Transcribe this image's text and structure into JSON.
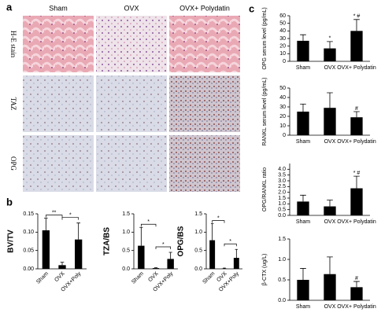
{
  "panel_labels": [
    "a",
    "b",
    "c"
  ],
  "histology": {
    "columns": [
      "Sham",
      "OVX",
      "OVX+ Polydatin"
    ],
    "rows": [
      "H-E stain",
      "TAZ",
      "OPG"
    ]
  },
  "chart_data": [
    {
      "type": "bar",
      "y_label": "BV/TV",
      "categories": [
        "Sham",
        "OVX",
        "OVX+Poly"
      ],
      "color": "#000000",
      "series": [
        {
          "values": [
            0.105,
            0.01,
            0.08
          ],
          "errors": [
            0.033,
            0.008,
            0.045
          ]
        }
      ],
      "ylim": [
        0,
        0.15
      ],
      "yticks": [
        {
          "value": 0,
          "label": "0.00"
        },
        {
          "value": 0.05,
          "label": "0.05"
        },
        {
          "value": 0.1,
          "label": "0.10"
        },
        {
          "value": 0.15,
          "label": "0.15"
        }
      ],
      "annotations": [
        {
          "text": "**",
          "between": [
            "Sham",
            "OVX"
          ]
        },
        {
          "text": "*",
          "between": [
            "OVX",
            "OVX+Poly"
          ]
        }
      ]
    },
    {
      "type": "bar",
      "y_label": "TZA/BS",
      "categories": [
        "Sham",
        "OVX",
        "OVX+Poly"
      ],
      "color": "#000000",
      "series": [
        {
          "values": [
            0.63,
            0.02,
            0.27
          ],
          "errors": [
            0.5,
            0.01,
            0.18
          ]
        }
      ],
      "ylim": [
        0,
        1.5
      ],
      "yticks": [
        {
          "value": 0,
          "label": "0.0"
        },
        {
          "value": 0.5,
          "label": "0.5"
        },
        {
          "value": 1,
          "label": "1.0"
        },
        {
          "value": 1.5,
          "label": "1.5"
        }
      ],
      "annotations": [
        {
          "text": "*",
          "between": [
            "Sham",
            "OVX"
          ]
        },
        {
          "text": "*",
          "between": [
            "OVX",
            "OVX+Poly"
          ]
        }
      ]
    },
    {
      "type": "bar",
      "y_label": "OPG/BS",
      "categories": [
        "Sham",
        "OVX",
        "OVX+Poly"
      ],
      "color": "#000000",
      "series": [
        {
          "values": [
            0.78,
            0.01,
            0.3
          ],
          "errors": [
            0.45,
            0.01,
            0.23
          ]
        }
      ],
      "ylim": [
        0,
        1.5
      ],
      "yticks": [
        {
          "value": 0,
          "label": "0.0"
        },
        {
          "value": 0.5,
          "label": "0.5"
        },
        {
          "value": 1,
          "label": "1.0"
        },
        {
          "value": 1.5,
          "label": "1.5"
        }
      ],
      "annotations": [
        {
          "text": "*",
          "between": [
            "Sham",
            "OVX"
          ]
        },
        {
          "text": "*",
          "between": [
            "OVX",
            "OVX+Poly"
          ]
        }
      ]
    },
    {
      "type": "bar",
      "y_label": "OPG serum level (pg/mL)",
      "categories": [
        "Sham",
        "OVX",
        "OVX+ Polydatin"
      ],
      "color": "#000000",
      "series": [
        {
          "values": [
            27,
            17,
            40
          ],
          "errors": [
            8,
            9,
            15
          ]
        }
      ],
      "ylim": [
        0,
        60
      ],
      "yticks": [
        0,
        10,
        20,
        30,
        40,
        50,
        60
      ],
      "annotations": [
        {
          "text": "*",
          "category": "OVX"
        },
        {
          "text": "* #",
          "category": "OVX+ Polydatin"
        }
      ]
    },
    {
      "type": "bar",
      "y_label": "RANKL serum level (pg/mL)",
      "categories": [
        "Sham",
        "OVX",
        "OVX+ Polydatin"
      ],
      "color": "#000000",
      "series": [
        {
          "values": [
            25,
            29,
            19
          ],
          "errors": [
            8,
            16,
            6
          ]
        }
      ],
      "ylim": [
        0,
        50
      ],
      "yticks": [
        0,
        10,
        20,
        30,
        40,
        50
      ],
      "annotations": [
        {
          "text": "#",
          "category": "OVX+ Polydatin"
        }
      ]
    },
    {
      "type": "bar",
      "y_label": "OPG/RANKL ratio",
      "categories": [
        "Sham",
        "OVX",
        "OVX+ Polydatin"
      ],
      "color": "#000000",
      "series": [
        {
          "values": [
            1.2,
            0.78,
            2.35
          ],
          "errors": [
            0.55,
            0.55,
            1.05
          ]
        }
      ],
      "ylim": [
        0,
        4.5
      ],
      "yticks": [
        {
          "value": 0,
          "label": "0.0"
        },
        {
          "value": 0.5,
          "label": "0.5"
        },
        {
          "value": 1,
          "label": "1.0"
        },
        {
          "value": 1.5,
          "label": "1.5"
        },
        {
          "value": 2,
          "label": "2.0"
        },
        {
          "value": 2.5,
          "label": "2.5"
        },
        {
          "value": 3,
          "label": "3.0"
        },
        {
          "value": 3.5,
          "label": "3.5"
        },
        {
          "value": 4,
          "label": "4.0"
        }
      ],
      "annotations": [
        {
          "text": "* #",
          "category": "OVX+ Polydatin"
        }
      ]
    },
    {
      "type": "bar",
      "y_label": "β-CTX (ug/L)",
      "categories": [
        "Sham",
        "OVX",
        "OVX+ Polydatin"
      ],
      "color": "#000000",
      "series": [
        {
          "values": [
            0.5,
            0.64,
            0.32
          ],
          "errors": [
            0.28,
            0.42,
            0.14
          ]
        }
      ],
      "ylim": [
        0,
        1.5
      ],
      "yticks": [
        {
          "value": 0,
          "label": "0.0"
        },
        {
          "value": 0.5,
          "label": "0.5"
        },
        {
          "value": 1,
          "label": "1.0"
        },
        {
          "value": 1.5,
          "label": "1.5"
        }
      ],
      "annotations": [
        {
          "text": "#",
          "category": "OVX+ Polydatin"
        }
      ]
    }
  ]
}
